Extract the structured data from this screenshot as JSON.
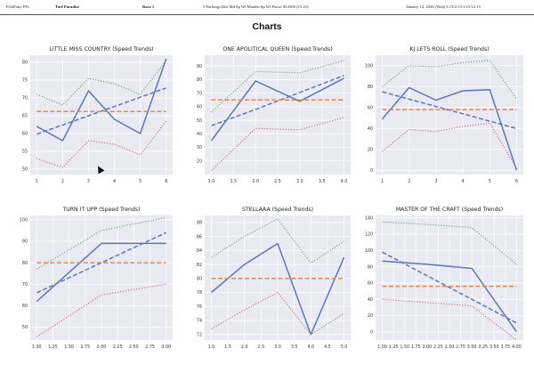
{
  "header": {
    "brand": "PickPony PPs",
    "track": "Turf Paradise",
    "race": "Race 1",
    "conditions": "5 Furlongs Dirt Md Sp Wt Maiden Sp Wt Purse: $14300 (15.23)",
    "date": "January 14, 2026 (Wed) 3:15/2:15/1:15/12:15"
  },
  "page_title": "Charts",
  "colors": {
    "actual": "#5a76b8",
    "trend": "#5a76b8",
    "average": "#e8854e",
    "upper": "#55a064",
    "lower": "#d1556a",
    "plot_bg": "#e9eaf1",
    "grid": "#ffffff"
  },
  "chart_data": [
    {
      "type": "line",
      "title": "LITTLE MISS COUNTRY (Speed Trends)",
      "x": [
        1,
        2,
        3,
        4,
        5,
        6
      ],
      "xticks": [
        "1",
        "2",
        "3",
        "4",
        "5",
        "6"
      ],
      "yticks": [
        "50",
        "55",
        "60",
        "65",
        "70",
        "75",
        "80"
      ],
      "xlim": [
        0.75,
        6.25
      ],
      "ylim": [
        48.5,
        82
      ],
      "grid": true,
      "series": [
        {
          "values": [
            62,
            58,
            72,
            64,
            60,
            81
          ],
          "style": "solid"
        },
        {
          "values": [
            59.8,
            62.4,
            65,
            67.6,
            70.2,
            72.8
          ],
          "style": "dashed"
        },
        {
          "values": [
            66.2,
            66.2,
            66.2,
            66.2,
            66.2,
            66.2
          ],
          "style": "dashed"
        },
        {
          "values": [
            71,
            68,
            75.5,
            74,
            71,
            80.5
          ],
          "style": "dotted"
        },
        {
          "values": [
            53,
            50.5,
            58,
            57,
            54,
            63.5
          ],
          "style": "dotted"
        }
      ]
    },
    {
      "type": "line",
      "title": "ONE APOLITICAL QUEEN (Speed Trends)",
      "x": [
        1,
        2,
        3,
        4
      ],
      "xticks": [
        "1.0",
        "1.5",
        "2.0",
        "2.5",
        "3.0",
        "3.5",
        "4.0"
      ],
      "xtick_values": [
        1,
        1.5,
        2,
        2.5,
        3,
        3.5,
        4
      ],
      "yticks": [
        "20",
        "30",
        "40",
        "50",
        "60",
        "70",
        "80",
        "90"
      ],
      "xlim": [
        0.85,
        4.15
      ],
      "ylim": [
        10,
        98
      ],
      "grid": true,
      "series": [
        {
          "values": [
            35,
            79,
            64,
            81
          ],
          "style": "solid"
        },
        {
          "values": [
            46,
            58,
            70.5,
            83
          ],
          "style": "dashed"
        },
        {
          "values": [
            65,
            65,
            65,
            65
          ],
          "style": "dashed"
        },
        {
          "values": [
            56,
            86,
            85,
            94
          ],
          "style": "dotted"
        },
        {
          "values": [
            13,
            44,
            43,
            52
          ],
          "style": "dotted"
        }
      ]
    },
    {
      "type": "line",
      "title": "KJ LETS ROLL (Speed Trends)",
      "x": [
        1,
        2,
        3,
        4,
        5,
        6
      ],
      "xticks": [
        "1",
        "2",
        "3",
        "4",
        "5",
        "6"
      ],
      "yticks": [
        "0",
        "20",
        "40",
        "60",
        "80",
        "100"
      ],
      "xlim": [
        0.75,
        6.25
      ],
      "ylim": [
        -4,
        110
      ],
      "grid": true,
      "series": [
        {
          "values": [
            49,
            79,
            67,
            76,
            77,
            0
          ],
          "style": "solid"
        },
        {
          "values": [
            75,
            68,
            61,
            54,
            47,
            40
          ],
          "style": "dashed"
        },
        {
          "values": [
            58,
            58,
            58,
            58,
            58,
            58
          ],
          "style": "dashed"
        },
        {
          "values": [
            80,
            100,
            99,
            103,
            105,
            68
          ],
          "style": "dotted"
        },
        {
          "values": [
            18,
            39,
            37,
            42,
            45,
            2
          ],
          "style": "dotted"
        }
      ]
    },
    {
      "type": "line",
      "title": "TURN IT UPP (Speed Trends)",
      "x": [
        1,
        2,
        3
      ],
      "xticks": [
        "1.00",
        "1.25",
        "1.50",
        "1.75",
        "2.00",
        "2.25",
        "2.50",
        "2.75",
        "3.00"
      ],
      "xtick_values": [
        1,
        1.25,
        1.5,
        1.75,
        2,
        2.25,
        2.5,
        2.75,
        3
      ],
      "yticks": [
        "50",
        "60",
        "70",
        "80",
        "90",
        "100"
      ],
      "xlim": [
        0.9,
        3.1
      ],
      "ylim": [
        44,
        102
      ],
      "grid": true,
      "series": [
        {
          "values": [
            62,
            89,
            89
          ],
          "style": "solid"
        },
        {
          "values": [
            66,
            80,
            94
          ],
          "style": "dashed"
        },
        {
          "values": [
            80,
            80,
            80
          ],
          "style": "dashed"
        },
        {
          "values": [
            77,
            95,
            101
          ],
          "style": "dotted"
        },
        {
          "values": [
            45.5,
            65,
            70
          ],
          "style": "dotted"
        }
      ]
    },
    {
      "type": "line",
      "title": "STELLAAA (Speed Trends)",
      "x": [
        1,
        2,
        3,
        4,
        5
      ],
      "xticks": [
        "1.0",
        "1.5",
        "2.0",
        "2.5",
        "3.0",
        "3.5",
        "4.0",
        "4.5",
        "5.0"
      ],
      "xtick_values": [
        1,
        1.5,
        2,
        2.5,
        3,
        3.5,
        4,
        4.5,
        5
      ],
      "yticks": [
        "72",
        "74",
        "76",
        "78",
        "80",
        "82",
        "84",
        "86",
        "88"
      ],
      "xlim": [
        0.8,
        5.2
      ],
      "ylim": [
        71.2,
        89
      ],
      "grid": true,
      "series": [
        {
          "values": [
            78,
            82,
            85,
            72,
            83
          ],
          "style": "solid"
        },
        {
          "values": [
            80,
            80,
            80,
            80,
            80
          ],
          "style": "dashed"
        },
        {
          "values": [
            83,
            86,
            88.5,
            82.2,
            85.3
          ],
          "style": "dotted"
        },
        {
          "values": [
            72.8,
            75.5,
            78,
            72,
            75
          ],
          "style": "dotted"
        }
      ]
    },
    {
      "type": "line",
      "title": "MASTER OF THE CRAFT (Speed Trends)",
      "x": [
        1,
        2,
        3,
        4
      ],
      "xticks": [
        "1.00",
        "1.25",
        "1.50",
        "1.75",
        "2.00",
        "2.25",
        "2.50",
        "2.75",
        "3.00",
        "3.25",
        "3.50",
        "3.75",
        "4.00"
      ],
      "xtick_values": [
        1,
        1.25,
        1.5,
        1.75,
        2,
        2.25,
        2.5,
        2.75,
        3,
        3.25,
        3.5,
        3.75,
        4
      ],
      "yticks": [
        "0",
        "20",
        "40",
        "60",
        "80",
        "100",
        "120",
        "140"
      ],
      "xlim": [
        0.85,
        4.15
      ],
      "ylim": [
        -10,
        143
      ],
      "grid": true,
      "series": [
        {
          "values": [
            87,
            83,
            78,
            0
          ],
          "style": "solid"
        },
        {
          "values": [
            98,
            69,
            40,
            11
          ],
          "style": "dashed"
        },
        {
          "values": [
            56,
            56,
            56,
            56
          ],
          "style": "dashed"
        },
        {
          "values": [
            135,
            132,
            128,
            83
          ],
          "style": "dotted"
        },
        {
          "values": [
            40,
            36,
            32,
            -10
          ],
          "style": "dotted"
        }
      ]
    }
  ]
}
